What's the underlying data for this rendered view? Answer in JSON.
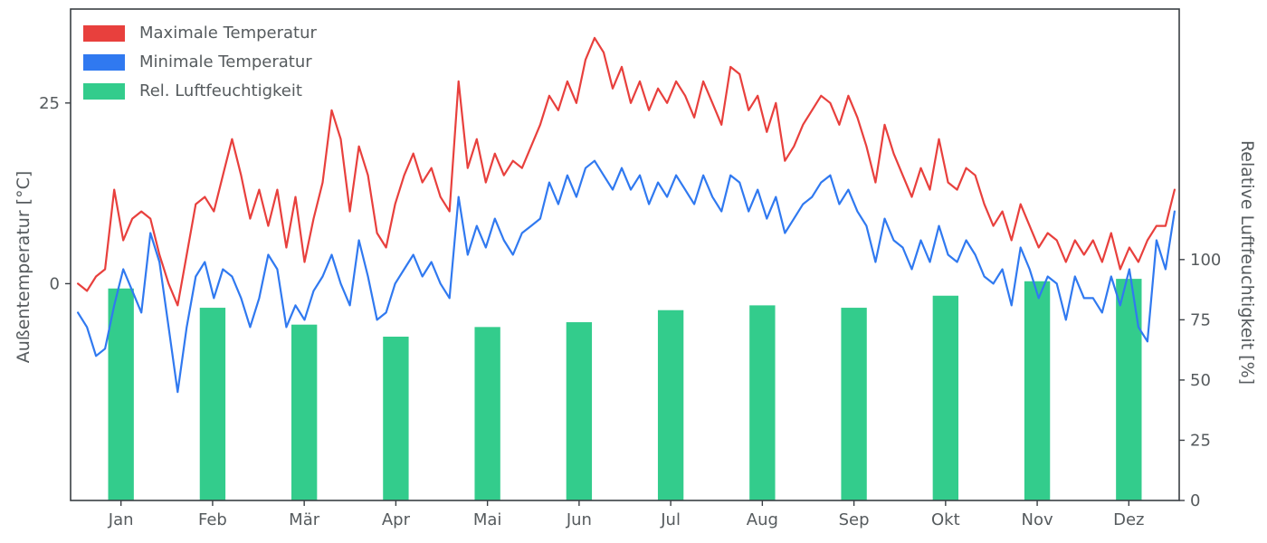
{
  "chart_data": {
    "type": "line+bar",
    "title": "",
    "grid": false,
    "colors": {
      "background": "#ffffff",
      "spine": "#3a3f44",
      "tick_text": "#565b5e",
      "max_temp": "#e8403d",
      "min_temp": "#3079f0",
      "humidity": "#33cc8c"
    },
    "legend": {
      "position": "upper left"
    },
    "left_axis": {
      "label": "Außentemperatur [°C]",
      "ticks": [
        0,
        25
      ],
      "range": [
        -30,
        38
      ]
    },
    "right_axis": {
      "label": "Relative Luftfeuchtigkeit [%]",
      "ticks": [
        0,
        25,
        50,
        75,
        100
      ],
      "range": [
        0,
        204
      ]
    },
    "x_axis": {
      "unit": "month",
      "range": [
        -0.55,
        11.55
      ],
      "tick_positions": [
        0,
        1,
        2,
        3,
        4,
        5,
        6,
        7,
        8,
        9,
        10,
        11
      ],
      "tick_labels": [
        "Jan",
        "Feb",
        "Mär",
        "Apr",
        "Mai",
        "Jun",
        "Jul",
        "Aug",
        "Sep",
        "Okt",
        "Nov",
        "Dez"
      ],
      "line_x_start": -0.47,
      "line_x_end": 11.5,
      "bar_width_months": 0.28
    },
    "series": [
      {
        "name": "Maximale Temperatur",
        "type": "line",
        "axis": "left",
        "color": "#e8403d",
        "values": [
          0,
          -1,
          1,
          2,
          13,
          6,
          9,
          10,
          9,
          4,
          0,
          -3,
          4,
          11,
          12,
          10,
          15,
          20,
          15,
          9,
          13,
          8,
          13,
          5,
          12,
          3,
          9,
          14,
          24,
          20,
          10,
          19,
          15,
          7,
          5,
          11,
          15,
          18,
          14,
          16,
          12,
          10,
          28,
          16,
          20,
          14,
          18,
          15,
          17,
          16,
          19,
          22,
          26,
          24,
          28,
          25,
          31,
          34,
          32,
          27,
          30,
          25,
          28,
          24,
          27,
          25,
          28,
          26,
          23,
          28,
          25,
          22,
          30,
          29,
          24,
          26,
          21,
          25,
          17,
          19,
          22,
          24,
          26,
          25,
          22,
          26,
          23,
          19,
          14,
          22,
          18,
          15,
          12,
          16,
          13,
          20,
          14,
          13,
          16,
          15,
          11,
          8,
          10,
          6,
          11,
          8,
          5,
          7,
          6,
          3,
          6,
          4,
          6,
          3,
          7,
          2,
          5,
          3,
          6,
          8,
          8,
          13
        ]
      },
      {
        "name": "Minimale Temperatur",
        "type": "line",
        "axis": "left",
        "color": "#3079f0",
        "values": [
          -4,
          -6,
          -10,
          -9,
          -3,
          2,
          -1,
          -4,
          7,
          3,
          -6,
          -15,
          -6,
          1,
          3,
          -2,
          2,
          1,
          -2,
          -6,
          -2,
          4,
          2,
          -6,
          -3,
          -5,
          -1,
          1,
          4,
          0,
          -3,
          6,
          1,
          -5,
          -4,
          0,
          2,
          4,
          1,
          3,
          0,
          -2,
          12,
          4,
          8,
          5,
          9,
          6,
          4,
          7,
          8,
          9,
          14,
          11,
          15,
          12,
          16,
          17,
          15,
          13,
          16,
          13,
          15,
          11,
          14,
          12,
          15,
          13,
          11,
          15,
          12,
          10,
          15,
          14,
          10,
          13,
          9,
          12,
          7,
          9,
          11,
          12,
          14,
          15,
          11,
          13,
          10,
          8,
          3,
          9,
          6,
          5,
          2,
          6,
          3,
          8,
          4,
          3,
          6,
          4,
          1,
          0,
          2,
          -3,
          5,
          2,
          -2,
          1,
          0,
          -5,
          1,
          -2,
          -2,
          -4,
          1,
          -3,
          2,
          -6,
          -8,
          6,
          2,
          10
        ]
      },
      {
        "name": "Rel. Luftfeuchtigkeit",
        "type": "bar",
        "axis": "right",
        "color": "#33cc8c",
        "categories": [
          "Jan",
          "Feb",
          "Mär",
          "Apr",
          "Mai",
          "Jun",
          "Jul",
          "Aug",
          "Sep",
          "Okt",
          "Nov",
          "Dez"
        ],
        "values": [
          88,
          80,
          73,
          68,
          72,
          74,
          79,
          81,
          80,
          85,
          91,
          92
        ]
      }
    ]
  }
}
